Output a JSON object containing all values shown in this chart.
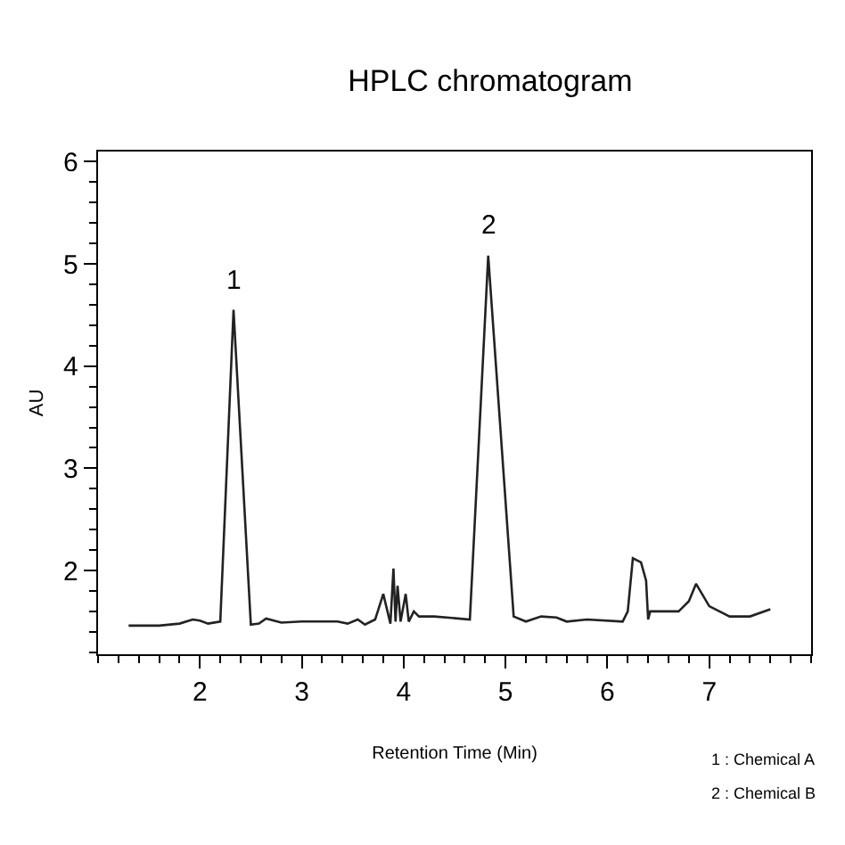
{
  "chart_data": {
    "type": "line",
    "title": "HPLC chromatogram",
    "xlabel": "Retention Time (Min)",
    "ylabel": "AU",
    "xlim": [
      1.0,
      8.0
    ],
    "xticks": [
      2,
      3,
      4,
      5,
      6,
      7
    ],
    "ylim": [
      1.18,
      6.1
    ],
    "yticks": [
      2,
      3,
      4,
      5,
      6
    ],
    "marker": "none",
    "line_style": "solid",
    "series": [
      {
        "color": "#222222",
        "x": [
          1.3,
          1.6,
          1.8,
          1.93,
          2.0,
          2.08,
          2.2,
          2.33,
          2.5,
          2.58,
          2.65,
          2.8,
          3.0,
          3.35,
          3.45,
          3.55,
          3.62,
          3.72,
          3.8,
          3.87,
          3.9,
          3.92,
          3.94,
          3.97,
          4.02,
          4.05,
          4.1,
          4.15,
          4.3,
          4.65,
          4.83,
          5.08,
          5.2,
          5.35,
          5.5,
          5.6,
          5.8,
          6.15,
          6.2,
          6.25,
          6.33,
          6.38,
          6.4,
          6.42,
          6.7,
          6.8,
          6.87,
          7.0,
          7.2,
          7.4,
          7.6
        ],
        "values": [
          1.46,
          1.46,
          1.48,
          1.52,
          1.51,
          1.48,
          1.5,
          4.55,
          1.47,
          1.48,
          1.53,
          1.49,
          1.5,
          1.5,
          1.48,
          1.52,
          1.47,
          1.52,
          1.77,
          1.48,
          2.02,
          1.5,
          1.85,
          1.5,
          1.77,
          1.5,
          1.6,
          1.55,
          1.55,
          1.52,
          5.08,
          1.55,
          1.5,
          1.55,
          1.54,
          1.5,
          1.52,
          1.5,
          1.6,
          2.12,
          2.08,
          1.9,
          1.52,
          1.6,
          1.6,
          1.7,
          1.87,
          1.65,
          1.55,
          1.55,
          1.62
        ]
      }
    ],
    "annotations": [
      {
        "text": "1",
        "x": 2.33,
        "y": 4.55
      },
      {
        "text": "2",
        "x": 4.83,
        "y": 5.08
      },
      "1 : Chemical A",
      "2 : Chemical B"
    ]
  }
}
